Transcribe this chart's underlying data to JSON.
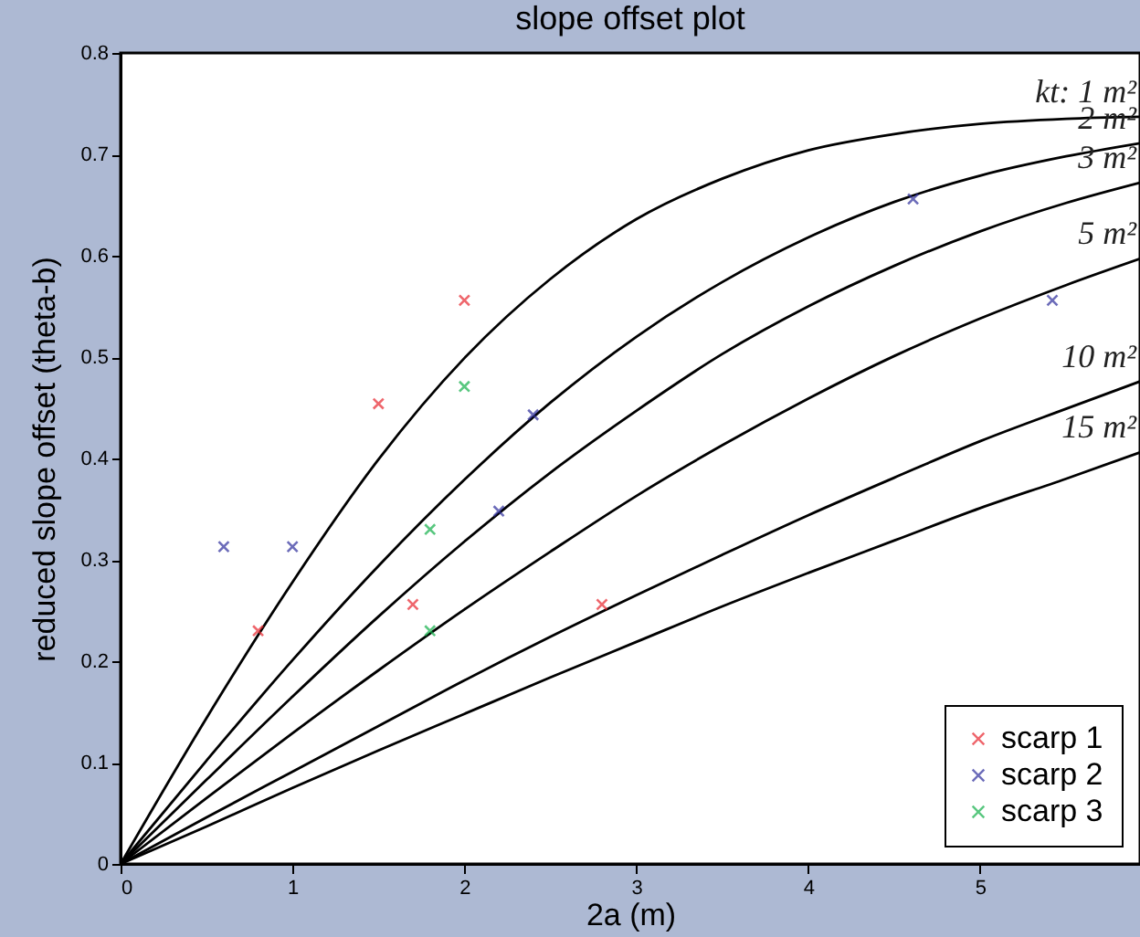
{
  "chart_data": {
    "type": "line",
    "title": "slope offset plot",
    "xlabel": "2a (m)",
    "ylabel": "reduced slope offset (theta-b)",
    "xlim": [
      0,
      5.93
    ],
    "ylim": [
      0,
      0.8
    ],
    "xticks": [
      0,
      1,
      2,
      3,
      4,
      5
    ],
    "yticks": [
      0,
      0.1,
      0.2,
      0.3,
      0.4,
      0.5,
      0.6,
      0.7,
      0.8
    ],
    "grid": false,
    "legend": "bottom right",
    "line_style": "solid",
    "x": [
      0,
      0.5,
      1,
      1.5,
      2,
      2.5,
      3,
      3.5,
      4,
      4.5,
      5,
      5.5,
      5.93
    ],
    "series": [
      {
        "name": "kt: 1 m²",
        "color": "#000000",
        "values": [
          0,
          0.144,
          0.278,
          0.399,
          0.499,
          0.577,
          0.636,
          0.676,
          0.704,
          0.72,
          0.73,
          0.735,
          0.737
        ]
      },
      {
        "name": "2 m²",
        "color": "#000000",
        "values": [
          0,
          0.102,
          0.201,
          0.294,
          0.379,
          0.455,
          0.52,
          0.574,
          0.618,
          0.653,
          0.679,
          0.698,
          0.711
        ]
      },
      {
        "name": "3 m²",
        "color": "#000000",
        "values": [
          0,
          0.083,
          0.165,
          0.244,
          0.318,
          0.386,
          0.447,
          0.503,
          0.55,
          0.59,
          0.624,
          0.652,
          0.672
        ]
      },
      {
        "name": "5 m²",
        "color": "#000000",
        "values": [
          0,
          0.065,
          0.129,
          0.191,
          0.251,
          0.308,
          0.363,
          0.413,
          0.459,
          0.501,
          0.538,
          0.571,
          0.597
        ]
      },
      {
        "name": "10 m²",
        "color": "#000000",
        "values": [
          0,
          0.046,
          0.091,
          0.136,
          0.181,
          0.224,
          0.265,
          0.305,
          0.344,
          0.381,
          0.417,
          0.449,
          0.476
        ]
      },
      {
        "name": "15 m²",
        "color": "#000000",
        "values": [
          0,
          0.037,
          0.075,
          0.112,
          0.148,
          0.184,
          0.219,
          0.254,
          0.287,
          0.319,
          0.351,
          0.38,
          0.406
        ]
      },
      {
        "name": "scarp 1",
        "type": "scatter",
        "marker": "cross",
        "color": "#e8262e",
        "x": [
          0.8,
          1.5,
          1.7,
          2.0,
          2.8
        ],
        "values": [
          0.23,
          0.454,
          0.256,
          0.556,
          0.256
        ]
      },
      {
        "name": "scarp 2",
        "type": "scatter",
        "marker": "cross",
        "color": "#2e2e9c",
        "x": [
          0.6,
          1.0,
          2.2,
          2.4,
          4.61,
          5.42
        ],
        "values": [
          0.313,
          0.313,
          0.348,
          0.443,
          0.656,
          0.556
        ]
      },
      {
        "name": "scarp 3",
        "type": "scatter",
        "marker": "cross",
        "color": "#13b04a",
        "x": [
          1.8,
          1.8,
          2.0
        ],
        "values": [
          0.33,
          0.23,
          0.471
        ]
      }
    ]
  }
}
